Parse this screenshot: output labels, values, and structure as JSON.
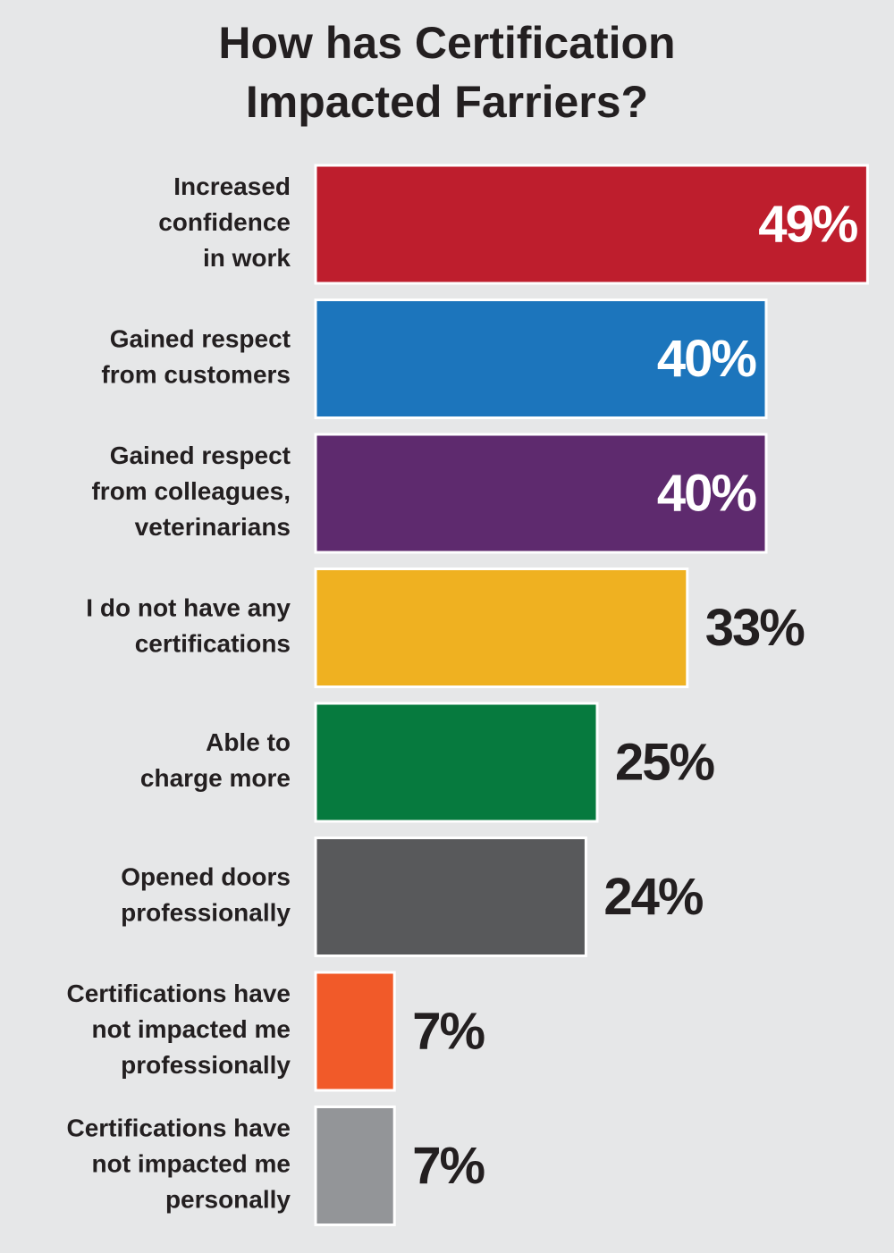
{
  "chart_data": {
    "type": "bar",
    "orientation": "horizontal",
    "title": "How has Certification\nImpacted Farriers?",
    "categories": [
      "Increased\nconfidence\nin work",
      "Gained respect\nfrom customers",
      "Gained respect\nfrom colleagues,\nveterinarians",
      "I do not have any\ncertifications",
      "Able to\ncharge more",
      "Opened doors\nprofessionally",
      "Certifications have\nnot impacted me\nprofessionally",
      "Certifications have\nnot impacted me\npersonally"
    ],
    "values": [
      49,
      40,
      40,
      33,
      25,
      24,
      7,
      7
    ],
    "value_labels": [
      "49%",
      "40%",
      "40%",
      "33%",
      "25%",
      "24%",
      "7%",
      "7%"
    ],
    "colors": [
      "#be1e2d",
      "#1c75bc",
      "#5e2a6e",
      "#efb121",
      "#067a3e",
      "#58595b",
      "#f15a29",
      "#939598"
    ]
  }
}
